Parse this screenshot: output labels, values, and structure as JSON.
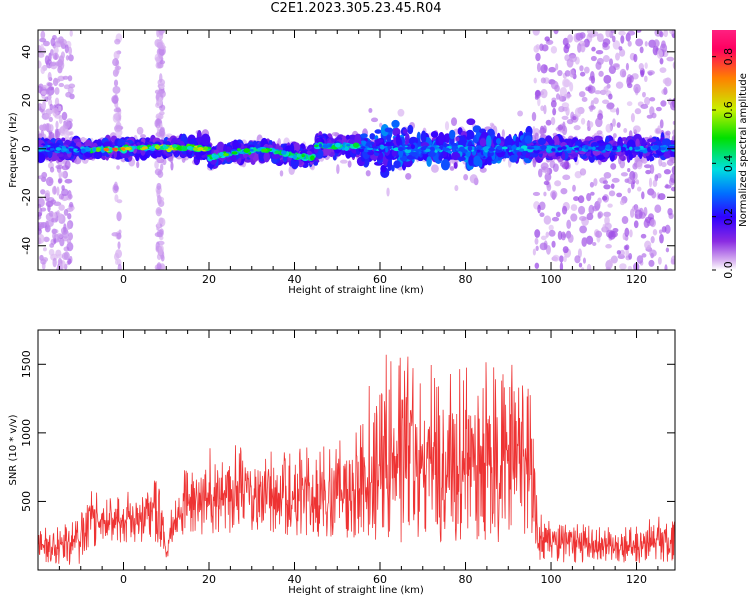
{
  "title": "C2E1.2023.305.23.45.R04",
  "chart_data": [
    {
      "type": "heatmap",
      "xlabel": "Height of straight line (km)",
      "ylabel": "Frequency (Hz)",
      "xlim": [
        -20,
        129
      ],
      "ylim": [
        -50,
        49
      ],
      "x_ticks": [
        0,
        20,
        40,
        60,
        80,
        100,
        120
      ],
      "y_ticks": [
        -40,
        -20,
        0,
        20,
        40
      ],
      "colorbar": {
        "label": "Normalized spectral amplitude",
        "range": [
          0.0,
          0.9
        ],
        "ticks": [
          0.0,
          0.2,
          0.4,
          0.6,
          0.8
        ],
        "colormap": [
          "#ffffff",
          "#d7b0f0",
          "#8a2be2",
          "#3000ff",
          "#0070ff",
          "#00e0e0",
          "#00e000",
          "#c8f000",
          "#ff8000",
          "#ff0060"
        ]
      },
      "description_features": {
        "main_band_center_hz": 0,
        "main_band_halfwidth_hz": [
          3,
          12
        ],
        "strongest_region_km": [
          -8,
          20
        ],
        "broadened_region_km": [
          55,
          95
        ],
        "noise_regions_km": [
          [
            -20,
            -12
          ],
          [
            96,
            129
          ]
        ]
      }
    },
    {
      "type": "line",
      "xlabel": "Height of straight line (km)",
      "ylabel": "SNR (10 * v/v)",
      "xlim": [
        -20,
        129
      ],
      "ylim": [
        0,
        1750
      ],
      "x_ticks": [
        0,
        20,
        40,
        60,
        80,
        100,
        120
      ],
      "y_ticks": [
        500,
        1000,
        1500
      ],
      "series_color": "#ee3333",
      "envelope": {
        "x": [
          -20,
          -10,
          -8,
          -5,
          0,
          5,
          9,
          10,
          12,
          20,
          30,
          40,
          50,
          55,
          60,
          61,
          70,
          80,
          90,
          94,
          96,
          97,
          110,
          120,
          129
        ],
        "low": [
          30,
          40,
          150,
          200,
          200,
          200,
          150,
          60,
          200,
          250,
          280,
          250,
          230,
          220,
          200,
          200,
          200,
          200,
          200,
          200,
          250,
          60,
          50,
          50,
          60
        ],
        "high": [
          330,
          400,
          780,
          520,
          560,
          640,
          720,
          130,
          700,
          900,
          920,
          880,
          930,
          1050,
          1650,
          1750,
          1550,
          1500,
          1550,
          1580,
          1150,
          420,
          320,
          330,
          480
        ]
      }
    }
  ]
}
